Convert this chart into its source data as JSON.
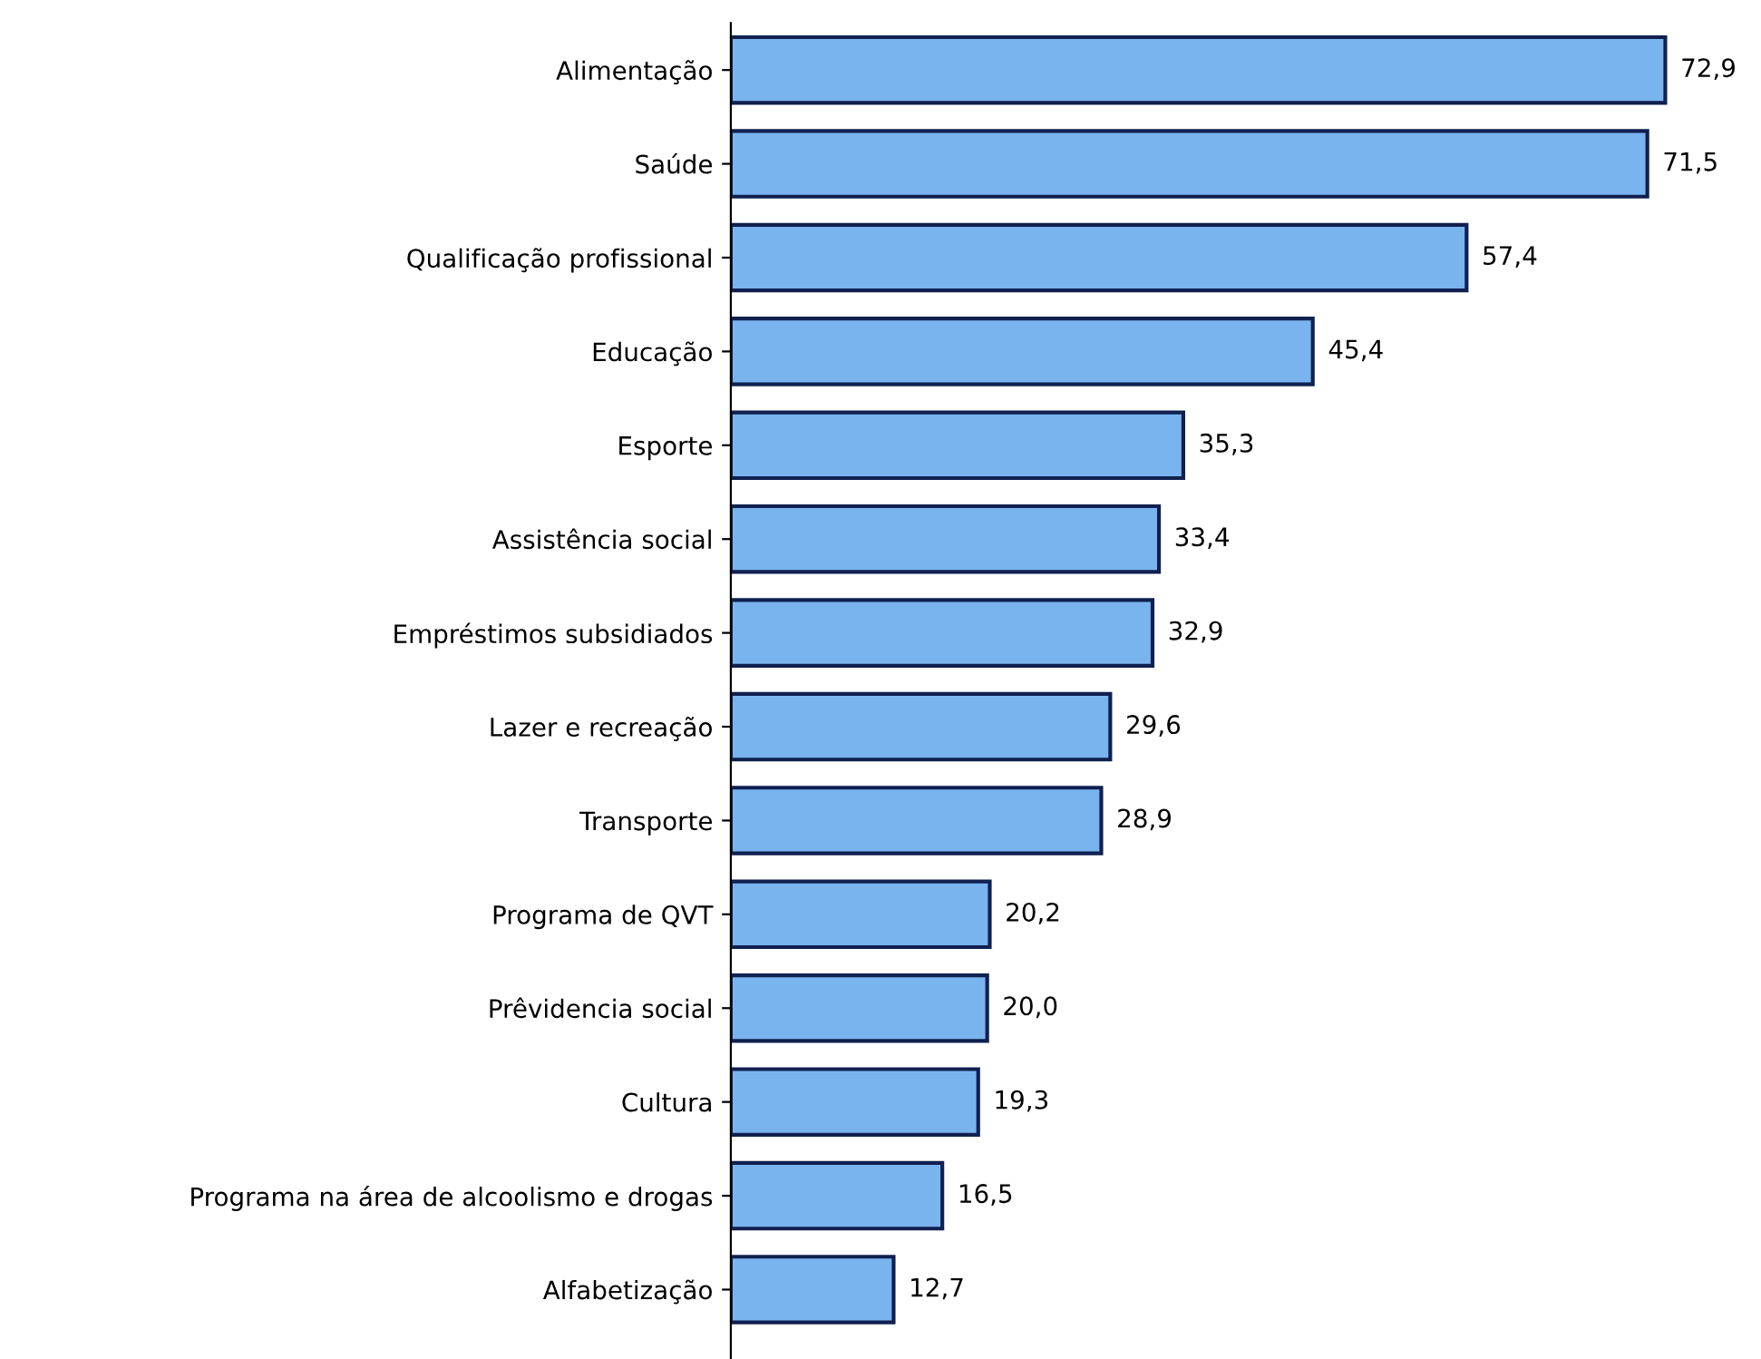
{
  "chart_data": {
    "type": "bar",
    "orientation": "horizontal",
    "categories": [
      "Alimentação",
      "Saúde",
      "Qualificação profissional",
      "Educação",
      "Esporte",
      "Assistência social",
      "Empréstimos subsidiados",
      "Lazer e recreação",
      "Transporte",
      "Programa de QVT",
      "Prêvidencia social",
      "Cultura",
      "Programa na área de alcoolismo e drogas",
      "Alfabetização"
    ],
    "values": [
      72.9,
      71.5,
      57.4,
      45.4,
      35.3,
      33.4,
      32.9,
      29.6,
      28.9,
      20.2,
      20.0,
      19.3,
      16.5,
      12.7
    ],
    "value_labels": [
      "72,9",
      "71,5",
      "57,4",
      "45,4",
      "35,3",
      "33,4",
      "32,9",
      "29,6",
      "28,9",
      "20,2",
      "20,0",
      "19,3",
      "16,5",
      "12,7"
    ],
    "color": "#7ab4ef",
    "grid": false,
    "legend": false
  }
}
